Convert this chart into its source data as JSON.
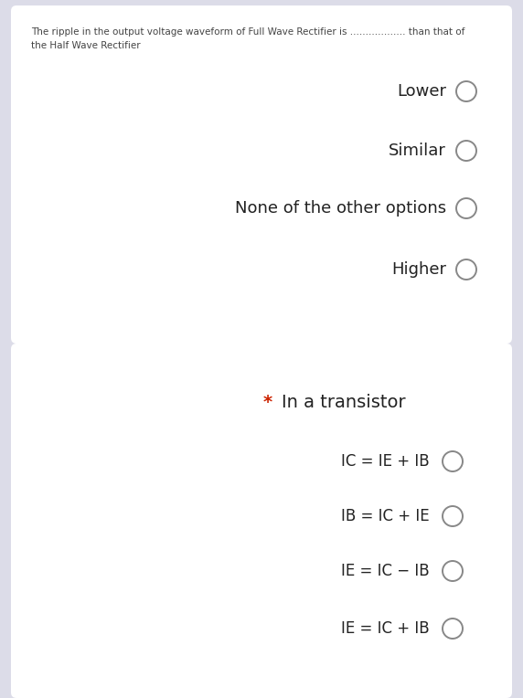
{
  "bg_color": "#dcdce8",
  "card_color": "#ffffff",
  "card1": {
    "header_text": "The ripple in the output voltage waveform of Full Wave Rectifier is .................. than that of\nthe Half Wave Rectifier",
    "header_fontsize": 7.5,
    "header_color": "#444444",
    "options": [
      "Lower",
      "Similar",
      "None of the other options",
      "Higher"
    ],
    "option_fontsize": 13,
    "option_color": "#222222"
  },
  "card2": {
    "star_color": "#cc2200",
    "title_color": "#222222",
    "title_fontsize": 14,
    "options": [
      "IC = IE + IB",
      "IB = IC + IE",
      "IE = IC − IB",
      "IE = IC + IB"
    ],
    "option_fontsize": 12,
    "option_color": "#222222"
  },
  "circle_color": "#888888",
  "circle_lw": 1.4
}
